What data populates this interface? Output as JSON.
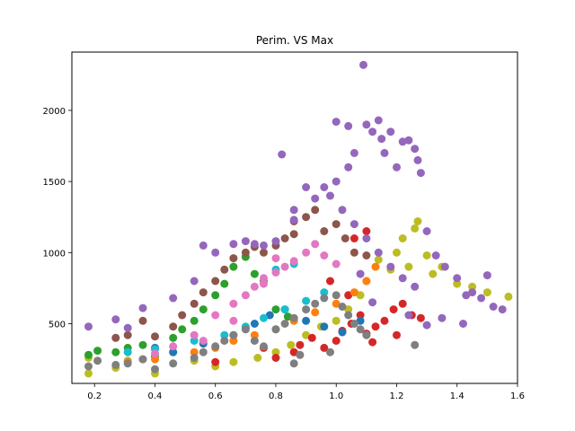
{
  "chart_data": {
    "type": "scatter",
    "title": "Perim. VS Max",
    "xlabel": "",
    "ylabel": "",
    "xlim": [
      0.125,
      1.6
    ],
    "ylim": [
      80,
      2410
    ],
    "xticks": [
      0.2,
      0.4,
      0.6,
      0.8,
      1.0,
      1.2,
      1.4,
      1.6
    ],
    "xtick_labels": [
      "0.2",
      "0.4",
      "0.6",
      "0.8",
      "1.0",
      "1.2",
      "1.4",
      "1.6"
    ],
    "yticks": [
      500,
      1000,
      1500,
      2000
    ],
    "ytick_labels": [
      "500",
      "1000",
      "1500",
      "2000"
    ],
    "grid": false,
    "legend": "none",
    "series": [
      {
        "color": "#bcbd22",
        "points": [
          [
            0.18,
            150
          ],
          [
            0.18,
            260
          ],
          [
            0.27,
            190
          ],
          [
            0.31,
            240
          ],
          [
            0.4,
            150
          ],
          [
            0.46,
            300
          ],
          [
            0.53,
            240
          ],
          [
            0.6,
            200
          ],
          [
            0.66,
            230
          ],
          [
            0.74,
            260
          ],
          [
            0.8,
            300
          ],
          [
            0.85,
            350
          ],
          [
            0.9,
            420
          ],
          [
            0.95,
            480
          ],
          [
            1.0,
            520
          ],
          [
            1.04,
            600
          ],
          [
            1.08,
            700
          ],
          [
            1.1,
            800
          ],
          [
            1.14,
            950
          ],
          [
            1.18,
            880
          ],
          [
            1.2,
            1000
          ],
          [
            1.22,
            1100
          ],
          [
            1.24,
            900
          ],
          [
            1.26,
            1170
          ],
          [
            1.27,
            1220
          ],
          [
            1.3,
            980
          ],
          [
            1.32,
            850
          ],
          [
            1.35,
            900
          ],
          [
            1.4,
            780
          ],
          [
            1.45,
            760
          ],
          [
            1.5,
            720
          ],
          [
            1.57,
            690
          ]
        ]
      },
      {
        "color": "#d62728",
        "points": [
          [
            0.88,
            350
          ],
          [
            0.92,
            400
          ],
          [
            0.96,
            330
          ],
          [
            1.0,
            380
          ],
          [
            1.02,
            450
          ],
          [
            1.05,
            500
          ],
          [
            1.08,
            560
          ],
          [
            1.1,
            430
          ],
          [
            1.13,
            480
          ],
          [
            1.16,
            520
          ],
          [
            1.19,
            600
          ],
          [
            1.22,
            640
          ],
          [
            1.25,
            560
          ],
          [
            1.28,
            540
          ],
          [
            1.06,
            1100
          ],
          [
            1.1,
            1150
          ],
          [
            0.98,
            800
          ],
          [
            1.04,
            700
          ],
          [
            1.12,
            370
          ],
          [
            1.2,
            420
          ],
          [
            0.76,
            330
          ],
          [
            0.8,
            260
          ],
          [
            0.6,
            230
          ],
          [
            0.86,
            300
          ]
        ]
      },
      {
        "color": "#2ca02c",
        "points": [
          [
            0.18,
            280
          ],
          [
            0.21,
            310
          ],
          [
            0.27,
            300
          ],
          [
            0.31,
            330
          ],
          [
            0.36,
            350
          ],
          [
            0.4,
            270
          ],
          [
            0.46,
            400
          ],
          [
            0.49,
            460
          ],
          [
            0.53,
            520
          ],
          [
            0.56,
            600
          ],
          [
            0.6,
            700
          ],
          [
            0.63,
            780
          ],
          [
            0.66,
            900
          ],
          [
            0.7,
            970
          ],
          [
            0.73,
            850
          ],
          [
            0.76,
            800
          ],
          [
            0.8,
            600
          ],
          [
            0.84,
            550
          ]
        ]
      },
      {
        "color": "#8c564b",
        "points": [
          [
            0.27,
            400
          ],
          [
            0.31,
            420
          ],
          [
            0.36,
            520
          ],
          [
            0.4,
            410
          ],
          [
            0.46,
            480
          ],
          [
            0.49,
            560
          ],
          [
            0.53,
            640
          ],
          [
            0.56,
            720
          ],
          [
            0.6,
            800
          ],
          [
            0.63,
            880
          ],
          [
            0.66,
            960
          ],
          [
            0.7,
            1000
          ],
          [
            0.73,
            1040
          ],
          [
            0.76,
            1000
          ],
          [
            0.8,
            1050
          ],
          [
            0.83,
            1100
          ],
          [
            0.86,
            1130
          ],
          [
            0.9,
            1250
          ],
          [
            0.93,
            1300
          ],
          [
            0.96,
            1150
          ],
          [
            1.0,
            1200
          ],
          [
            1.03,
            1100
          ],
          [
            1.06,
            1000
          ],
          [
            1.1,
            980
          ],
          [
            0.86,
            1220
          ]
        ]
      },
      {
        "color": "#1f77b4",
        "points": [
          [
            0.4,
            330
          ],
          [
            0.46,
            300
          ],
          [
            0.56,
            360
          ],
          [
            0.66,
            420
          ],
          [
            0.73,
            500
          ],
          [
            0.78,
            560
          ],
          [
            0.83,
            600
          ],
          [
            0.9,
            520
          ],
          [
            0.96,
            480
          ],
          [
            1.02,
            440
          ],
          [
            1.08,
            520
          ],
          [
            0.7,
            470
          ]
        ]
      },
      {
        "color": "#ff7f0e",
        "points": [
          [
            0.31,
            230
          ],
          [
            0.4,
            250
          ],
          [
            0.53,
            300
          ],
          [
            0.6,
            330
          ],
          [
            0.66,
            380
          ],
          [
            0.73,
            420
          ],
          [
            0.8,
            460
          ],
          [
            0.86,
            520
          ],
          [
            0.93,
            580
          ],
          [
            1.0,
            640
          ],
          [
            1.06,
            720
          ],
          [
            1.1,
            800
          ],
          [
            1.13,
            900
          ]
        ]
      },
      {
        "color": "#17becf",
        "points": [
          [
            0.31,
            300
          ],
          [
            0.4,
            320
          ],
          [
            0.53,
            380
          ],
          [
            0.63,
            420
          ],
          [
            0.7,
            480
          ],
          [
            0.76,
            540
          ],
          [
            0.83,
            600
          ],
          [
            0.9,
            660
          ],
          [
            0.96,
            720
          ],
          [
            0.8,
            880
          ],
          [
            0.86,
            920
          ]
        ]
      },
      {
        "color": "#9467bd",
        "points": [
          [
            0.18,
            480
          ],
          [
            0.27,
            530
          ],
          [
            0.31,
            470
          ],
          [
            0.36,
            610
          ],
          [
            0.46,
            680
          ],
          [
            0.53,
            800
          ],
          [
            0.56,
            1050
          ],
          [
            0.6,
            1000
          ],
          [
            0.66,
            1060
          ],
          [
            0.7,
            1080
          ],
          [
            0.73,
            1060
          ],
          [
            0.76,
            1050
          ],
          [
            0.8,
            1080
          ],
          [
            0.82,
            1690
          ],
          [
            0.86,
            1300
          ],
          [
            0.86,
            1230
          ],
          [
            0.9,
            1460
          ],
          [
            0.93,
            1380
          ],
          [
            0.96,
            1460
          ],
          [
            1.0,
            1500
          ],
          [
            1.0,
            1920
          ],
          [
            1.04,
            1890
          ],
          [
            1.04,
            1600
          ],
          [
            1.06,
            1700
          ],
          [
            1.09,
            2320
          ],
          [
            1.1,
            1900
          ],
          [
            1.12,
            1850
          ],
          [
            1.14,
            1930
          ],
          [
            1.15,
            1800
          ],
          [
            1.16,
            1700
          ],
          [
            1.18,
            1850
          ],
          [
            1.2,
            1600
          ],
          [
            1.22,
            1780
          ],
          [
            1.24,
            1790
          ],
          [
            1.26,
            1730
          ],
          [
            1.27,
            1650
          ],
          [
            1.28,
            1560
          ],
          [
            1.3,
            1150
          ],
          [
            1.33,
            980
          ],
          [
            1.36,
            900
          ],
          [
            1.4,
            820
          ],
          [
            1.43,
            700
          ],
          [
            1.45,
            720
          ],
          [
            1.48,
            680
          ],
          [
            1.5,
            840
          ],
          [
            1.52,
            620
          ],
          [
            1.55,
            600
          ],
          [
            1.26,
            760
          ],
          [
            1.22,
            820
          ],
          [
            1.18,
            900
          ],
          [
            1.14,
            1000
          ],
          [
            1.1,
            1100
          ],
          [
            1.06,
            1200
          ],
          [
            1.02,
            1300
          ],
          [
            0.98,
            1400
          ],
          [
            1.24,
            560
          ],
          [
            1.3,
            490
          ],
          [
            1.35,
            540
          ],
          [
            1.42,
            500
          ],
          [
            1.12,
            650
          ],
          [
            1.08,
            850
          ]
        ]
      },
      {
        "color": "#e377c2",
        "points": [
          [
            0.36,
            250
          ],
          [
            0.4,
            290
          ],
          [
            0.46,
            340
          ],
          [
            0.53,
            420
          ],
          [
            0.6,
            560
          ],
          [
            0.66,
            640
          ],
          [
            0.7,
            700
          ],
          [
            0.73,
            760
          ],
          [
            0.76,
            780
          ],
          [
            0.8,
            860
          ],
          [
            0.83,
            900
          ],
          [
            0.86,
            940
          ],
          [
            0.9,
            1000
          ],
          [
            0.93,
            1060
          ],
          [
            0.96,
            980
          ],
          [
            1.0,
            920
          ],
          [
            0.8,
            960
          ],
          [
            0.76,
            820
          ],
          [
            0.66,
            520
          ],
          [
            0.56,
            380
          ]
        ]
      },
      {
        "color": "#7f7f7f",
        "points": [
          [
            0.18,
            200
          ],
          [
            0.21,
            240
          ],
          [
            0.27,
            210
          ],
          [
            0.31,
            220
          ],
          [
            0.36,
            250
          ],
          [
            0.4,
            180
          ],
          [
            0.46,
            220
          ],
          [
            0.53,
            260
          ],
          [
            0.56,
            300
          ],
          [
            0.6,
            340
          ],
          [
            0.63,
            380
          ],
          [
            0.66,
            420
          ],
          [
            0.7,
            460
          ],
          [
            0.73,
            380
          ],
          [
            0.76,
            340
          ],
          [
            0.8,
            460
          ],
          [
            0.83,
            500
          ],
          [
            0.86,
            220
          ],
          [
            0.86,
            540
          ],
          [
            0.9,
            600
          ],
          [
            0.93,
            640
          ],
          [
            0.96,
            680
          ],
          [
            1.0,
            700
          ],
          [
            1.02,
            620
          ],
          [
            1.04,
            560
          ],
          [
            1.06,
            500
          ],
          [
            1.08,
            460
          ],
          [
            1.1,
            420
          ],
          [
            1.26,
            350
          ],
          [
            0.98,
            300
          ],
          [
            0.88,
            280
          ]
        ]
      }
    ]
  }
}
